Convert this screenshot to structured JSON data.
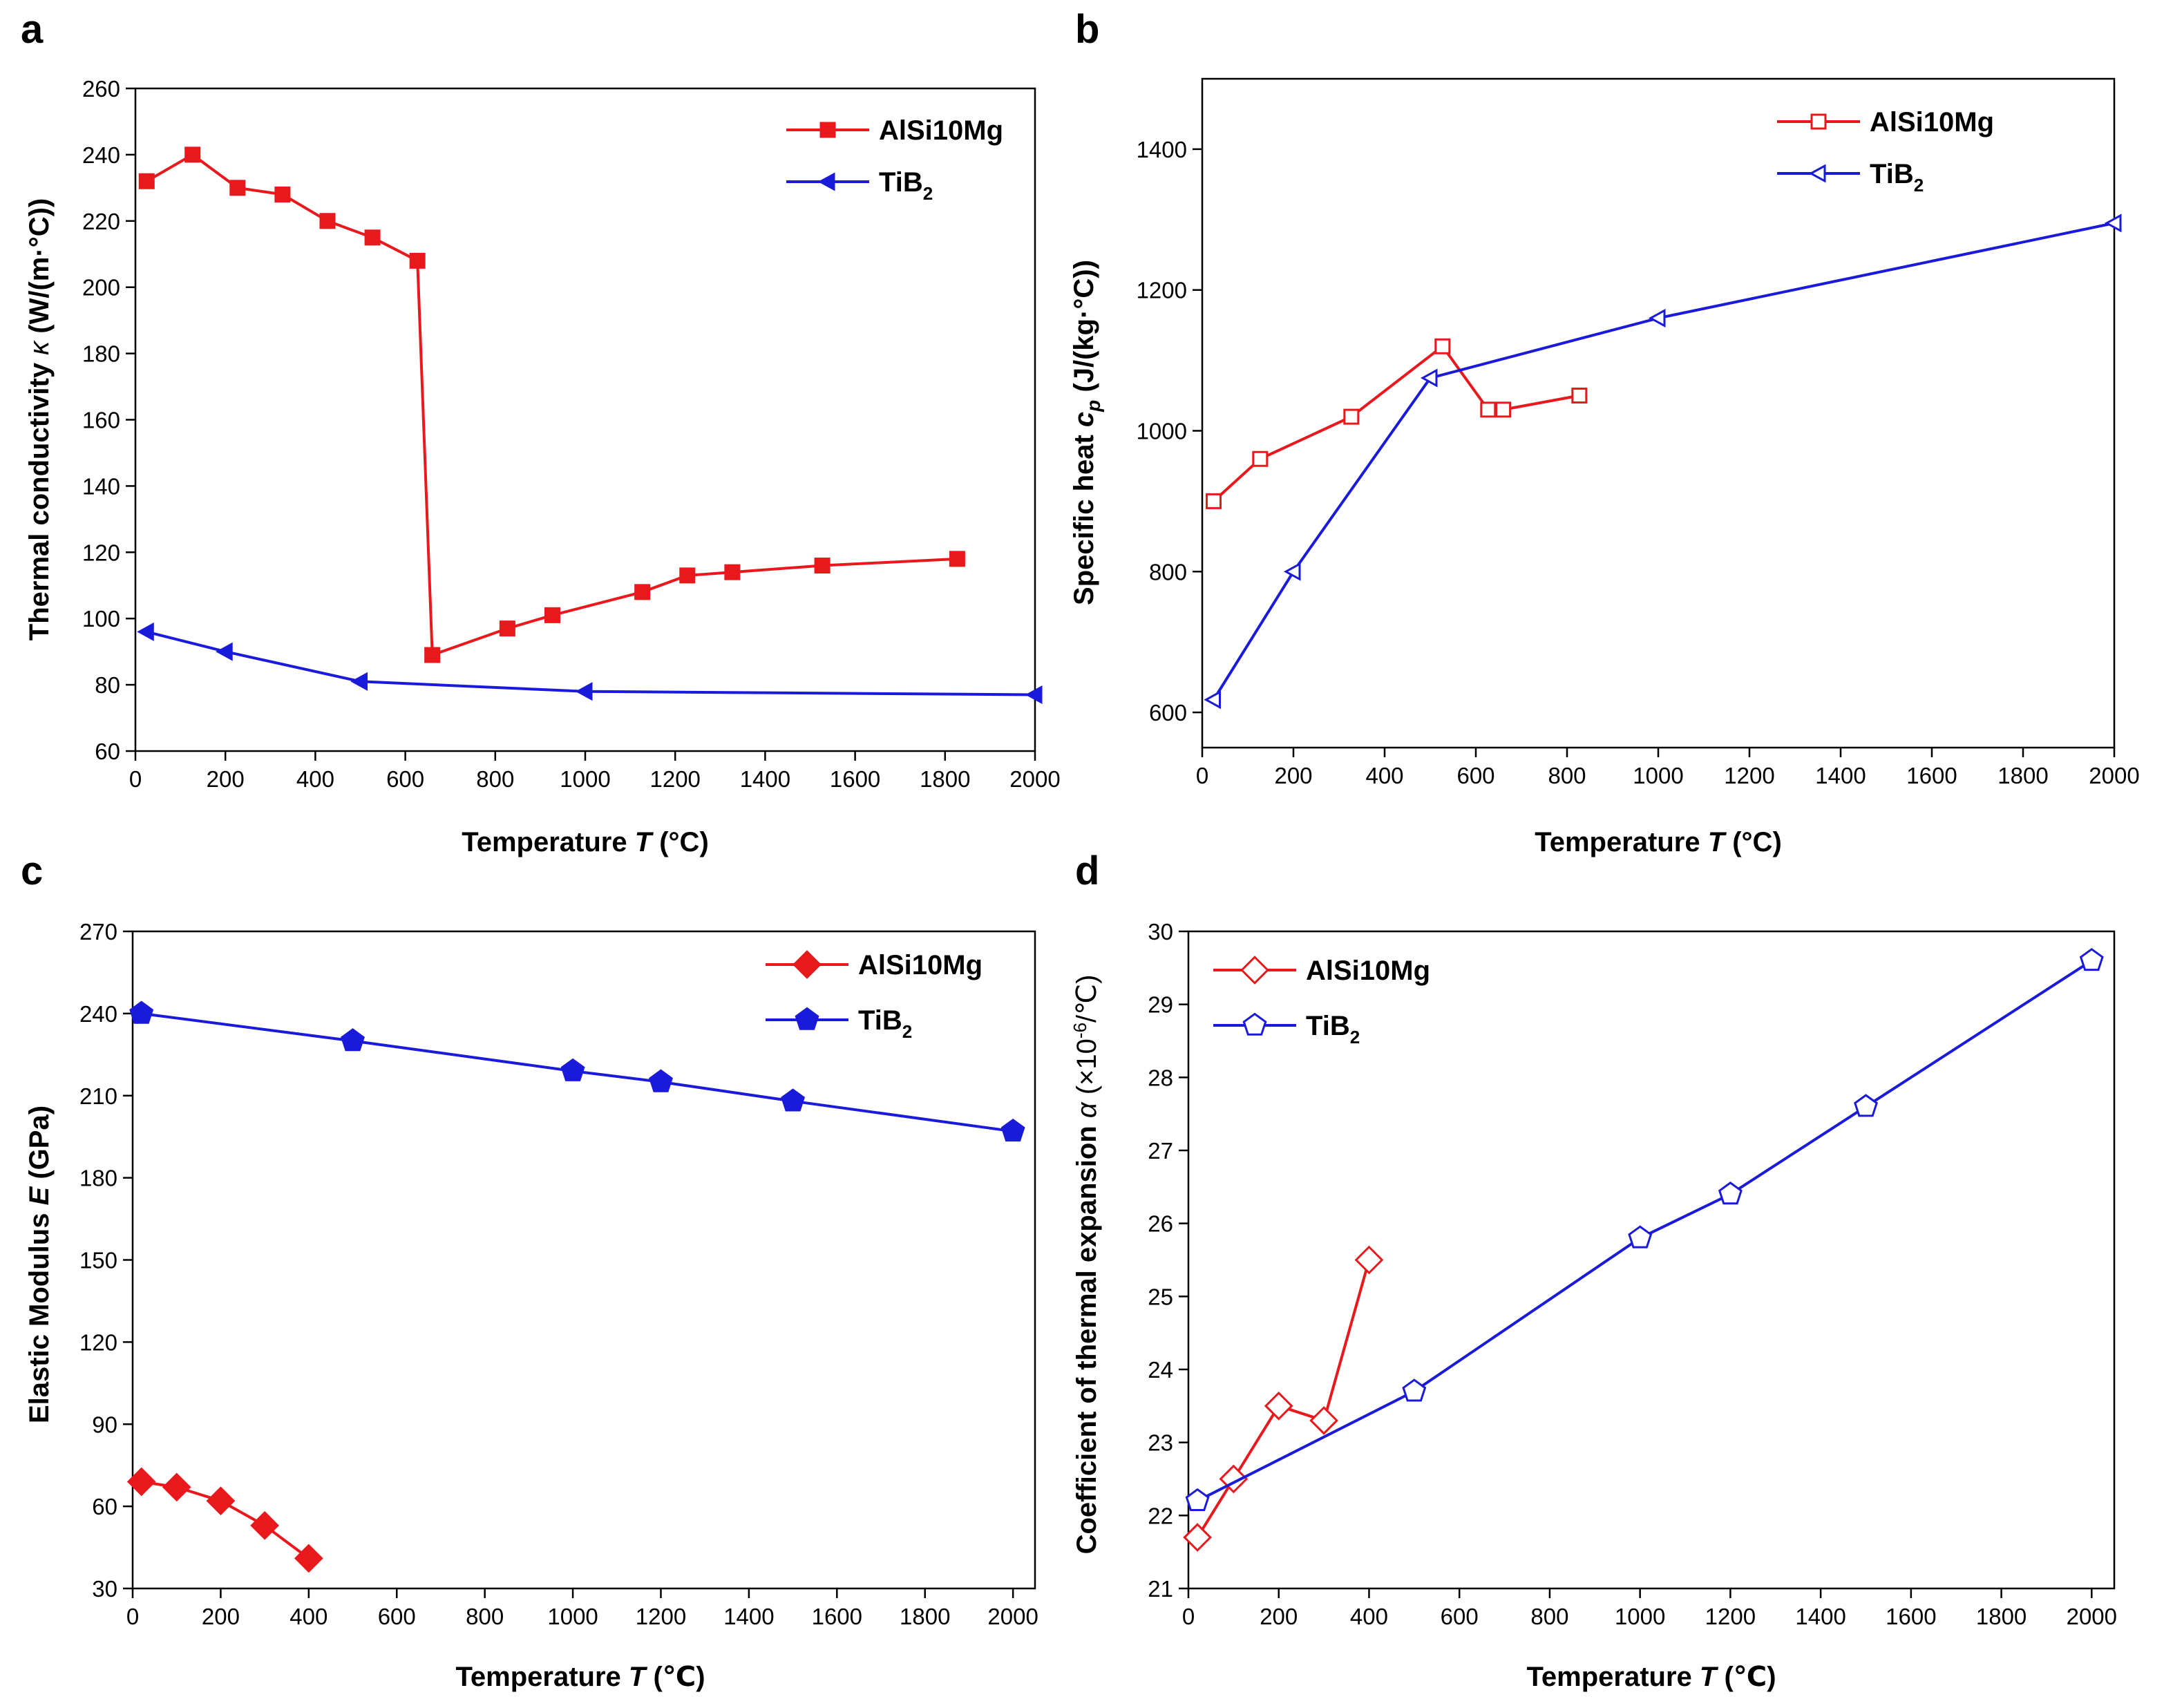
{
  "colors": {
    "red": "#e8181c",
    "blue": "#1a1adb",
    "axis": "#000000"
  },
  "chart_data": [
    {
      "panel": "a",
      "type": "line",
      "xlabel": "Temperature T (°C)",
      "ylabel": "Thermal conductivity κ (W/(m·°C))",
      "xlim": [
        0,
        2000
      ],
      "ylim": [
        60,
        260
      ],
      "xticks": [
        "0",
        "200",
        "400",
        "600",
        "800",
        "1000",
        "1200",
        "1400",
        "1600",
        "1800",
        "2000"
      ],
      "yticks": [
        "60",
        "80",
        "100",
        "120",
        "140",
        "160",
        "180",
        "200",
        "220",
        "240",
        "260"
      ],
      "legend_position": "top-right",
      "series": [
        {
          "name": "AlSi10Mg",
          "name_sub": "",
          "color": "#e8181c",
          "marker": "square",
          "filled": true,
          "x": [
            25,
            127,
            227,
            327,
            427,
            527,
            627,
            660,
            827,
            927,
            1127,
            1227,
            1327,
            1527,
            1827
          ],
          "y": [
            232,
            240,
            230,
            228,
            220,
            215,
            208,
            89,
            97,
            101,
            108,
            113,
            114,
            116,
            118
          ]
        },
        {
          "name": "TiB",
          "name_sub": "2",
          "color": "#1a1adb",
          "marker": "triangle-left",
          "filled": true,
          "x": [
            25,
            200,
            500,
            1000,
            2000
          ],
          "y": [
            96,
            90,
            81,
            78,
            77
          ]
        }
      ]
    },
    {
      "panel": "b",
      "type": "line",
      "xlabel": "Temperature T (°C)",
      "ylabel": "Specific heat cp (J/(kg·°C))",
      "xlim": [
        0,
        2000
      ],
      "ylim": [
        550,
        1500
      ],
      "xticks": [
        "0",
        "200",
        "400",
        "600",
        "800",
        "1000",
        "1200",
        "1400",
        "1600",
        "1800",
        "2000"
      ],
      "yticks": [
        "600",
        "800",
        "1000",
        "1200",
        "1400"
      ],
      "legend_position": "top-right",
      "series": [
        {
          "name": "AlSi10Mg",
          "name_sub": "",
          "color": "#e8181c",
          "marker": "square",
          "filled": false,
          "x": [
            25,
            127,
            327,
            527,
            627,
            660,
            827
          ],
          "y": [
            900,
            960,
            1020,
            1120,
            1030,
            1030,
            1050
          ]
        },
        {
          "name": "TiB",
          "name_sub": "2",
          "color": "#1a1adb",
          "marker": "triangle-left",
          "filled": false,
          "x": [
            25,
            200,
            500,
            1000,
            2000
          ],
          "y": [
            618,
            800,
            1075,
            1160,
            1295
          ]
        }
      ]
    },
    {
      "panel": "c",
      "type": "line",
      "xlabel": "Temperature T (℃)",
      "ylabel": "Elastic Modulus E (GPa)",
      "xlim": [
        0,
        2050
      ],
      "ylim": [
        30,
        270
      ],
      "xticks": [
        "0",
        "200",
        "400",
        "600",
        "800",
        "1000",
        "1200",
        "1400",
        "1600",
        "1800",
        "2000"
      ],
      "yticks": [
        "30",
        "60",
        "90",
        "120",
        "150",
        "180",
        "210",
        "240",
        "270"
      ],
      "legend_position": "top-right",
      "series": [
        {
          "name": "AlSi10Mg",
          "name_sub": "",
          "color": "#e8181c",
          "marker": "diamond",
          "filled": true,
          "x": [
            20,
            100,
            200,
            300,
            400
          ],
          "y": [
            69,
            67,
            62,
            53,
            41
          ]
        },
        {
          "name": "TiB",
          "name_sub": "2",
          "color": "#1a1adb",
          "marker": "pentagon",
          "filled": true,
          "x": [
            20,
            500,
            1000,
            1200,
            1500,
            2000
          ],
          "y": [
            240,
            230,
            219,
            215,
            208,
            197
          ]
        }
      ]
    },
    {
      "panel": "d",
      "type": "line",
      "xlabel": "Temperature T (℃)",
      "ylabel": "Coefficient of thermal expansion α (×10⁻⁶/℃)",
      "xlim": [
        0,
        2050
      ],
      "ylim": [
        21,
        30
      ],
      "xticks": [
        "0",
        "200",
        "400",
        "600",
        "800",
        "1000",
        "1200",
        "1400",
        "1600",
        "1800",
        "2000"
      ],
      "yticks": [
        "21",
        "22",
        "23",
        "24",
        "25",
        "26",
        "27",
        "28",
        "29",
        "30"
      ],
      "legend_position": "top-left",
      "series": [
        {
          "name": "AlSi10Mg",
          "name_sub": "",
          "color": "#e8181c",
          "marker": "diamond",
          "filled": false,
          "x": [
            20,
            100,
            200,
            300,
            400
          ],
          "y": [
            21.7,
            22.5,
            23.5,
            23.3,
            25.5
          ]
        },
        {
          "name": "TiB",
          "name_sub": "2",
          "color": "#1a1adb",
          "marker": "pentagon",
          "filled": false,
          "x": [
            20,
            500,
            1000,
            1200,
            1500,
            2000
          ],
          "y": [
            22.2,
            23.7,
            25.8,
            26.4,
            27.6,
            29.6
          ]
        }
      ]
    }
  ]
}
